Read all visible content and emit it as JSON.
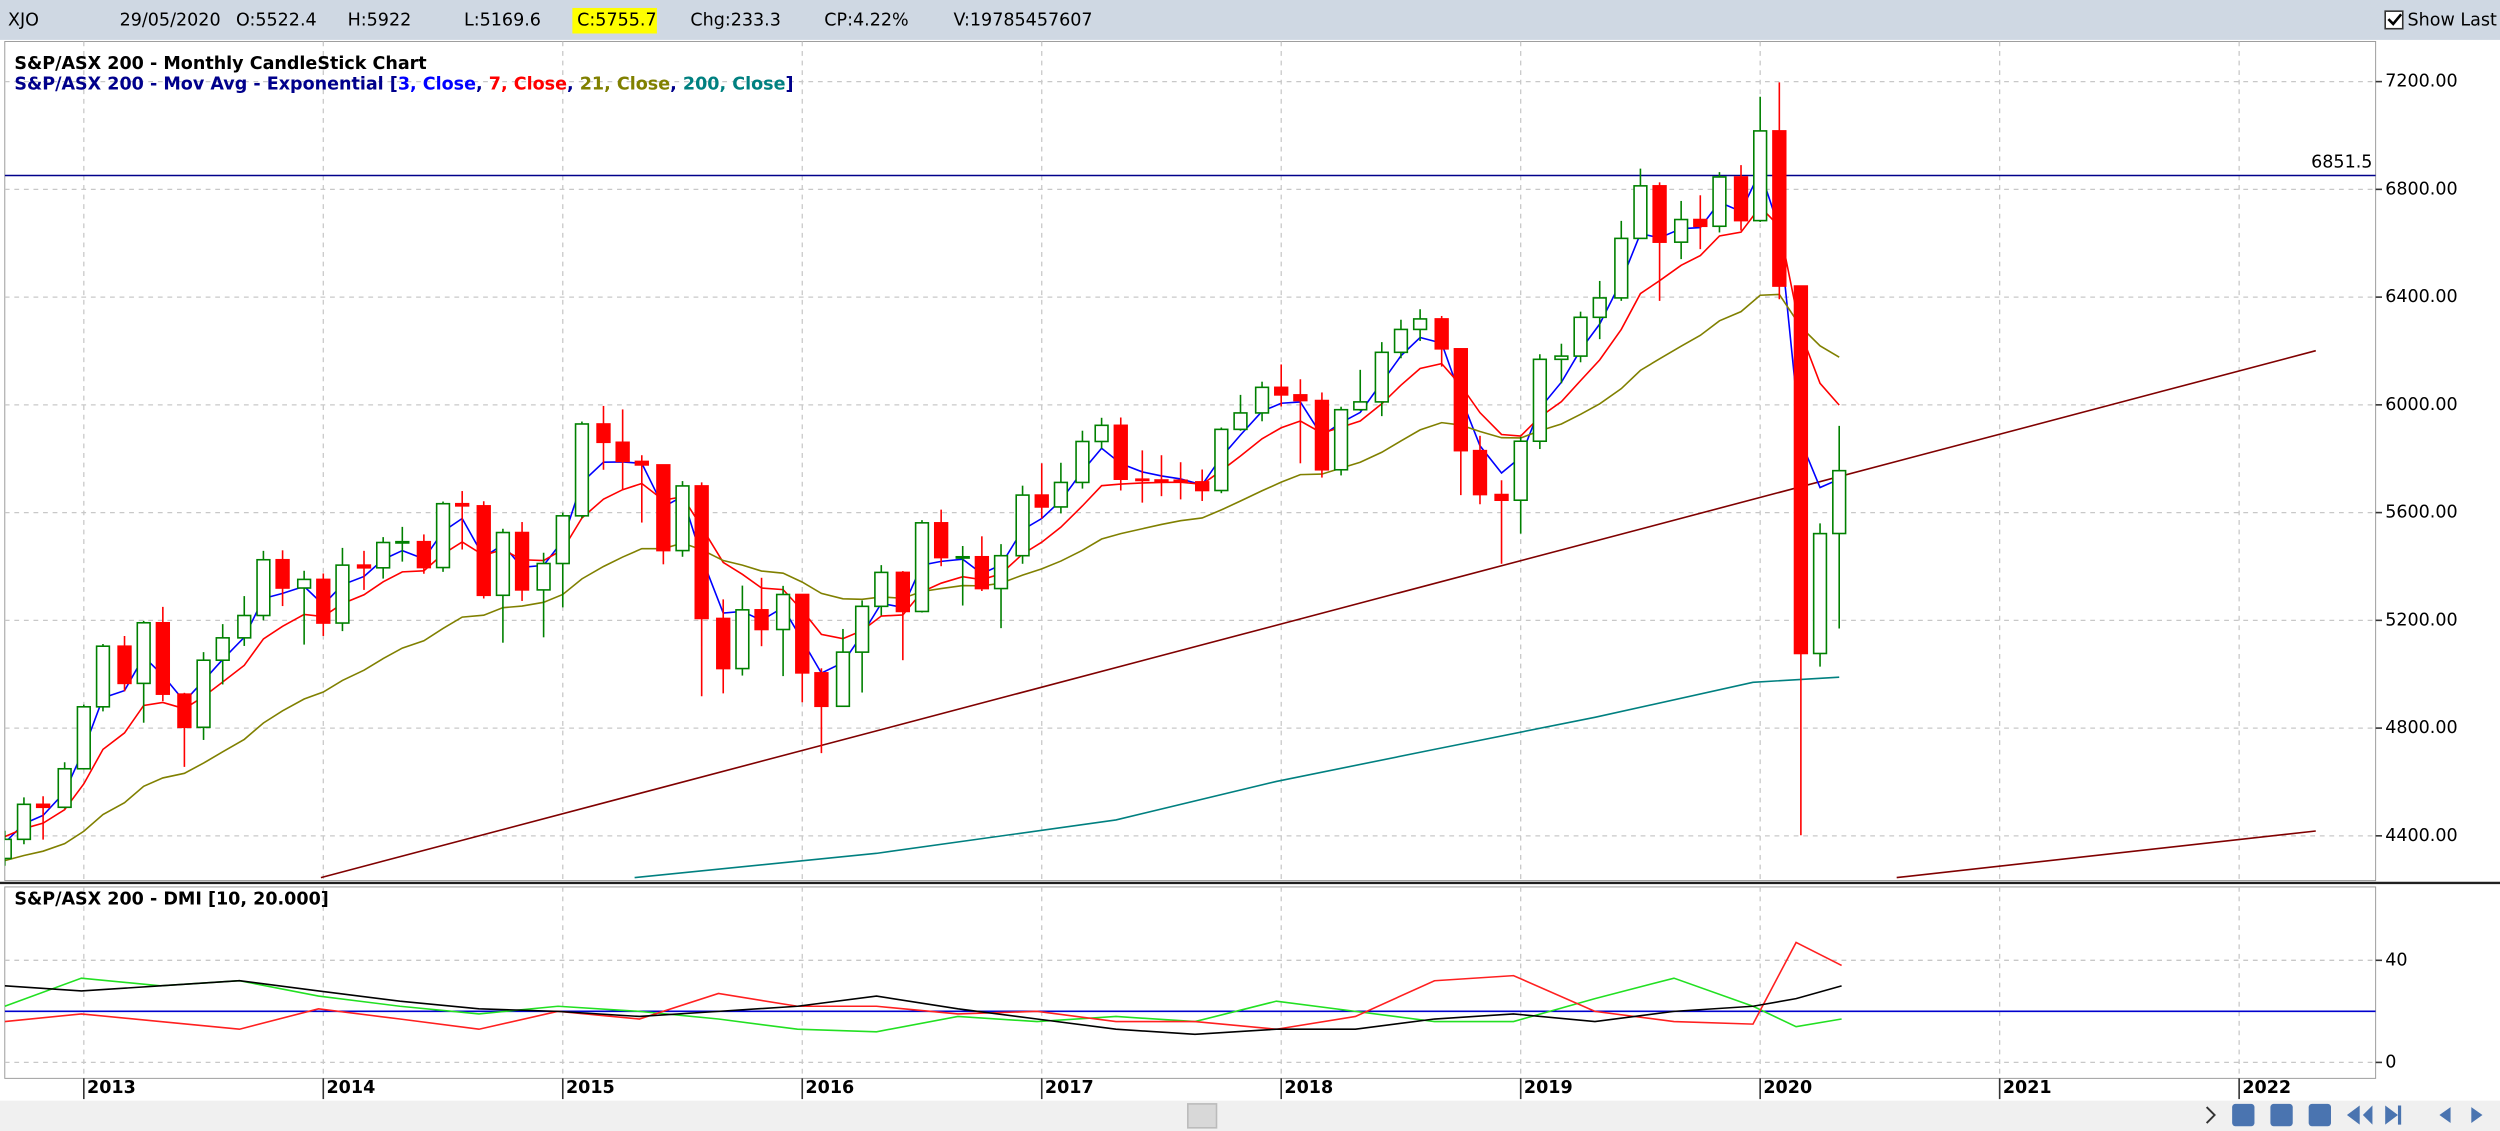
{
  "header": {
    "symbol": "XJO",
    "date": "29/05/2020",
    "open": "O:5522.4",
    "high": "H:5922",
    "low": "L:5169.6",
    "close": "C:5755.7",
    "change": "Chg:233.3",
    "change_pct": "CP:4.22%",
    "volume": "V:19785457607",
    "show_last": "Show Last"
  },
  "chart_data": [
    {
      "type": "candlestick",
      "title": "S&P/ASX 200 - Monthly CandleStick Chart",
      "subtitle": "S&P/ASX 200 - Mov Avg - Exponential",
      "up_color": "#008000",
      "down_color": "#ff0000",
      "x": [
        2012.67,
        2012.75,
        2012.83,
        2012.92,
        2013,
        2013.08,
        2013.17,
        2013.25,
        2013.33,
        2013.42,
        2013.5,
        2013.58,
        2013.67,
        2013.75,
        2013.83,
        2013.92,
        2014,
        2014.08,
        2014.17,
        2014.25,
        2014.33,
        2014.42,
        2014.5,
        2014.58,
        2014.67,
        2014.75,
        2014.83,
        2014.92,
        2015,
        2015.08,
        2015.17,
        2015.25,
        2015.33,
        2015.42,
        2015.5,
        2015.58,
        2015.67,
        2015.75,
        2015.83,
        2015.92,
        2016,
        2016.08,
        2016.17,
        2016.25,
        2016.33,
        2016.42,
        2016.5,
        2016.58,
        2016.67,
        2016.75,
        2016.83,
        2016.92,
        2017,
        2017.08,
        2017.17,
        2017.25,
        2017.33,
        2017.42,
        2017.5,
        2017.58,
        2017.67,
        2017.75,
        2017.83,
        2017.92,
        2018,
        2018.08,
        2018.17,
        2018.25,
        2018.33,
        2018.42,
        2018.5,
        2018.58,
        2018.67,
        2018.75,
        2018.83,
        2018.92,
        2019,
        2019.08,
        2019.17,
        2019.25,
        2019.33,
        2019.42,
        2019.5,
        2019.58,
        2019.67,
        2019.75,
        2019.83,
        2019.92,
        2020,
        2020.08,
        2020.17,
        2020.25,
        2020.33
      ],
      "open": [
        4316,
        4387,
        4517,
        4506,
        4649,
        4879,
        5104,
        4966,
        5191,
        4926,
        4803,
        5052,
        5135,
        5218,
        5425,
        5320,
        5352,
        5190,
        5405,
        5395,
        5489,
        5492,
        5396,
        5633,
        5625,
        5293,
        5526,
        5313,
        5411,
        5588,
        5929,
        5861,
        5790,
        5777,
        5459,
        5699,
        5207,
        5021,
        5239,
        5166,
        5296,
        5005,
        4881,
        5082,
        5252,
        5378,
        5233,
        5562,
        5433,
        5436,
        5318,
        5440,
        5665,
        5621,
        5712,
        5864,
        5924,
        5724,
        5721,
        5720,
        5714,
        5682,
        5909,
        5970,
        6065,
        6037,
        6016,
        5759,
        5982,
        6011,
        6195,
        6280,
        6319,
        6208,
        5830,
        5667,
        5646,
        5865,
        6169,
        6181,
        6325,
        6397,
        6618,
        6813,
        6604,
        6688,
        6663,
        6846,
        6684,
        7017,
        6441,
        5077,
        5522.4
      ],
      "high": [
        4419,
        4543,
        4547,
        4673,
        4887,
        5112,
        5142,
        5198,
        5250,
        4931,
        5082,
        5186,
        5290,
        5458,
        5460,
        5384,
        5374,
        5469,
        5458,
        5509,
        5547,
        5519,
        5641,
        5680,
        5642,
        5540,
        5565,
        5451,
        5600,
        5938,
        5996,
        5983,
        5813,
        5777,
        5717,
        5712,
        5278,
        5329,
        5358,
        5328,
        5296,
        5022,
        5168,
        5274,
        5405,
        5383,
        5572,
        5611,
        5476,
        5512,
        5483,
        5700,
        5783,
        5785,
        5904,
        5952,
        5953,
        5831,
        5813,
        5787,
        5760,
        5916,
        6037,
        6086,
        6150,
        6095,
        6046,
        5993,
        6130,
        6233,
        6316,
        6355,
        6330,
        6210,
        5885,
        5720,
        5881,
        6188,
        6227,
        6346,
        6460,
        6683,
        6877,
        6826,
        6757,
        6778,
        6864,
        6890,
        7144,
        7197,
        6441,
        5560,
        5922
      ],
      "low": [
        4289,
        4369,
        4386,
        4501,
        4649,
        4862,
        4937,
        4820,
        4900,
        4656,
        4756,
        4962,
        5105,
        5200,
        5253,
        5110,
        5142,
        5160,
        5313,
        5355,
        5418,
        5373,
        5380,
        5463,
        5281,
        5117,
        5272,
        5137,
        5248,
        5579,
        5759,
        5685,
        5563,
        5408,
        5436,
        4918,
        4929,
        4995,
        5104,
        4993,
        4896,
        4707,
        4881,
        4932,
        5218,
        5052,
        5229,
        5401,
        5255,
        5309,
        5171,
        5410,
        5578,
        5597,
        5689,
        5837,
        5682,
        5637,
        5661,
        5649,
        5643,
        5672,
        5904,
        5939,
        5994,
        5783,
        5730,
        5738,
        5978,
        5958,
        6173,
        6237,
        6142,
        5665,
        5631,
        5410,
        5522,
        5836,
        6080,
        6158,
        6244,
        6386,
        6618,
        6386,
        6541,
        6578,
        6640,
        6647,
        6679,
        6392,
        4402,
        5028,
        5169.6
      ],
      "close": [
        4387,
        4517,
        4506,
        4649,
        4879,
        5104,
        4966,
        5191,
        4926,
        4803,
        5052,
        5135,
        5218,
        5425,
        5320,
        5352,
        5190,
        5405,
        5395,
        5489,
        5492,
        5396,
        5633,
        5625,
        5293,
        5526,
        5313,
        5411,
        5588,
        5929,
        5861,
        5790,
        5777,
        5459,
        5699,
        5207,
        5021,
        5239,
        5166,
        5296,
        5005,
        4881,
        5082,
        5252,
        5378,
        5233,
        5562,
        5433,
        5436,
        5318,
        5440,
        5665,
        5621,
        5712,
        5864,
        5924,
        5724,
        5721,
        5720,
        5714,
        5682,
        5909,
        5970,
        6065,
        6037,
        6016,
        5759,
        5982,
        6011,
        6195,
        6280,
        6319,
        6208,
        5830,
        5667,
        5646,
        5865,
        6169,
        6181,
        6325,
        6397,
        6618,
        6813,
        6604,
        6688,
        6663,
        6846,
        6684,
        7017,
        6441,
        5077,
        5522,
        5755.7
      ],
      "series": [
        {
          "name": "3, Close",
          "color": "#0000ff",
          "values": [
            4374,
            4445,
            4476,
            4562,
            4721,
            4912,
            4939,
            5065,
            4996,
            4899,
            4976,
            5055,
            5137,
            5281,
            5300,
            5326,
            5258,
            5332,
            5363,
            5426,
            5459,
            5428,
            5530,
            5578,
            5435,
            5481,
            5397,
            5404,
            5496,
            5712,
            5787,
            5788,
            5783,
            5621,
            5660,
            5433,
            5227,
            5233,
            5200,
            5248,
            5126,
            5004,
            5043,
            5147,
            5263,
            5248,
            5405,
            5419,
            5427,
            5373,
            5406,
            5536,
            5578,
            5645,
            5754,
            5839,
            5782,
            5751,
            5736,
            5725,
            5703,
            5806,
            5888,
            5976,
            6006,
            6011,
            5885,
            5934,
            5972,
            6083,
            6182,
            6250,
            6229,
            6029,
            5848,
            5747,
            5806,
            5987,
            6084,
            6204,
            6300,
            6459,
            6636,
            6620,
            6654,
            6658,
            6752,
            6718,
            6867,
            6654,
            5865,
            5693,
            5724
          ]
        },
        {
          "name": "7, Close",
          "color": "#ff0000",
          "values": [
            4397,
            4427,
            4447,
            4497,
            4593,
            4721,
            4782,
            4884,
            4895,
            4872,
            4917,
            4971,
            5033,
            5131,
            5178,
            5222,
            5214,
            5262,
            5295,
            5343,
            5380,
            5384,
            5446,
            5491,
            5441,
            5463,
            5425,
            5422,
            5463,
            5580,
            5650,
            5685,
            5708,
            5646,
            5659,
            5546,
            5415,
            5371,
            5320,
            5314,
            5237,
            5148,
            5132,
            5162,
            5216,
            5220,
            5306,
            5338,
            5362,
            5351,
            5373,
            5446,
            5490,
            5546,
            5625,
            5700,
            5706,
            5710,
            5712,
            5713,
            5705,
            5756,
            5810,
            5874,
            5915,
            5940,
            5895,
            5917,
            5940,
            6004,
            6073,
            6135,
            6153,
            6072,
            5971,
            5890,
            5884,
            5955,
            6012,
            6090,
            6167,
            6280,
            6413,
            6461,
            6518,
            6554,
            6627,
            6641,
            6735,
            6662,
            6266,
            6080,
            5999
          ]
        },
        {
          "name": "21, Close",
          "color": "#808000",
          "values": [
            4308,
            4327,
            4343,
            4371,
            4417,
            4479,
            4523,
            4584,
            4615,
            4632,
            4670,
            4712,
            4758,
            4819,
            4864,
            4908,
            4934,
            4977,
            5015,
            5058,
            5097,
            5124,
            5170,
            5212,
            5219,
            5247,
            5253,
            5267,
            5296,
            5354,
            5400,
            5435,
            5466,
            5466,
            5487,
            5462,
            5422,
            5405,
            5383,
            5375,
            5342,
            5300,
            5280,
            5278,
            5287,
            5282,
            5307,
            5318,
            5329,
            5328,
            5338,
            5368,
            5391,
            5420,
            5460,
            5502,
            5522,
            5540,
            5556,
            5570,
            5580,
            5610,
            5643,
            5681,
            5713,
            5741,
            5743,
            5765,
            5787,
            5824,
            5866,
            5907,
            5934,
            5925,
            5901,
            5878,
            5877,
            5904,
            5929,
            5965,
            6004,
            6060,
            6128,
            6171,
            6218,
            6258,
            6312,
            6346,
            6407,
            6410,
            6289,
            6219,
            6177
          ]
        },
        {
          "name": "200, Close",
          "color": "#008080",
          "x": [
            2015.3,
            2016.31,
            2017.31,
            2017.98,
            2018.64,
            2019.31,
            2019.97,
            2020.33
          ],
          "values": [
            4245,
            4335,
            4459,
            4602,
            4721,
            4840,
            4970,
            4989
          ]
        }
      ],
      "hline": {
        "value": 6851.5,
        "color": "#00008b"
      },
      "trendlines": [
        {
          "color": "#800000",
          "x": [
            2013.99,
            2022.32
          ],
          "values": [
            4245,
            6201
          ]
        },
        {
          "color": "#800000",
          "x": [
            2020.57,
            2022.32
          ],
          "values": [
            4245,
            4418
          ]
        }
      ],
      "xlim": [
        2012.67,
        2022.57
      ],
      "ylim": [
        4234,
        7349
      ],
      "yticks": [
        {
          "value": 4400,
          "label": "4400.00"
        },
        {
          "value": 4800,
          "label": "4800.00"
        },
        {
          "value": 5200,
          "label": "5200.00"
        },
        {
          "value": 5600,
          "label": "5600.00"
        },
        {
          "value": 6000,
          "label": "6000.00"
        },
        {
          "value": 6400,
          "label": "6400.00"
        },
        {
          "value": 6800,
          "label": "6800.00"
        },
        {
          "value": 7200,
          "label": "7200.00"
        }
      ],
      "grid": true
    },
    {
      "type": "line",
      "title": "S&P/ASX 200 - DMI [10, 20.000]",
      "x": [
        2012.67,
        2012.99,
        2013.32,
        2013.65,
        2013.98,
        2014.32,
        2014.65,
        2014.98,
        2015.32,
        2015.65,
        2015.98,
        2016.31,
        2016.65,
        2016.98,
        2017.31,
        2017.64,
        2017.98,
        2018.31,
        2018.64,
        2018.97,
        2019.31,
        2019.64,
        2019.97,
        2020.15,
        2020.34
      ],
      "series": [
        {
          "color": "#22e022",
          "values": [
            22,
            33,
            30,
            32,
            26,
            22,
            19,
            22,
            20,
            17,
            13,
            12,
            18,
            16,
            18,
            16,
            24,
            20,
            16,
            16,
            25,
            33,
            22,
            14,
            17
          ]
        },
        {
          "color": "#ff2020",
          "values": [
            16,
            19,
            16,
            13,
            21,
            17,
            13,
            20,
            17,
            27,
            22,
            22,
            19,
            20,
            16,
            16,
            13,
            18,
            32,
            34,
            20,
            16,
            15,
            47,
            38
          ]
        },
        {
          "color": "#000000",
          "values": [
            30,
            28,
            30,
            32,
            28,
            24,
            21,
            20,
            18,
            20,
            22,
            26,
            21,
            17,
            13,
            11,
            13,
            13,
            17,
            19,
            16,
            20,
            22,
            25,
            30
          ]
        }
      ],
      "hline": {
        "value": 20,
        "color": "#0000cd"
      },
      "xlim": [
        2012.67,
        2022.57
      ],
      "ylim": [
        -6.25,
        68.75
      ],
      "yticks": [
        0,
        40
      ],
      "xticks": [
        2013,
        2014,
        2015,
        2016,
        2017,
        2018,
        2019,
        2020,
        2021,
        2022
      ],
      "grid": true
    }
  ]
}
